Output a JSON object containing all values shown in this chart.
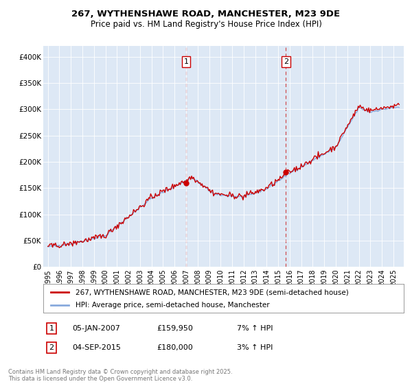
{
  "title1": "267, WYTHENSHAWE ROAD, MANCHESTER, M23 9DE",
  "title2": "Price paid vs. HM Land Registry's House Price Index (HPI)",
  "legend_line1": "267, WYTHENSHAWE ROAD, MANCHESTER, M23 9DE (semi-detached house)",
  "legend_line2": "HPI: Average price, semi-detached house, Manchester",
  "marker1_date": "05-JAN-2007",
  "marker1_price": "£159,950",
  "marker1_hpi": "7% ↑ HPI",
  "marker2_date": "04-SEP-2015",
  "marker2_price": "£180,000",
  "marker2_hpi": "3% ↑ HPI",
  "footer": "Contains HM Land Registry data © Crown copyright and database right 2025.\nThis data is licensed under the Open Government Licence v3.0.",
  "line_color_red": "#cc0000",
  "line_color_blue": "#88aadd",
  "vline_color": "#cc3333",
  "background_color": "#dde8f5",
  "ylim": [
    0,
    420000
  ],
  "yticks": [
    0,
    50000,
    100000,
    150000,
    200000,
    250000,
    300000,
    350000,
    400000
  ],
  "ytick_labels": [
    "£0",
    "£50K",
    "£100K",
    "£150K",
    "£200K",
    "£250K",
    "£300K",
    "£350K",
    "£400K"
  ],
  "marker1_x": 2007.0,
  "marker1_y": 159950,
  "marker2_x": 2015.67,
  "marker2_y": 180000,
  "xlim_left": 1994.6,
  "xlim_right": 2025.9
}
